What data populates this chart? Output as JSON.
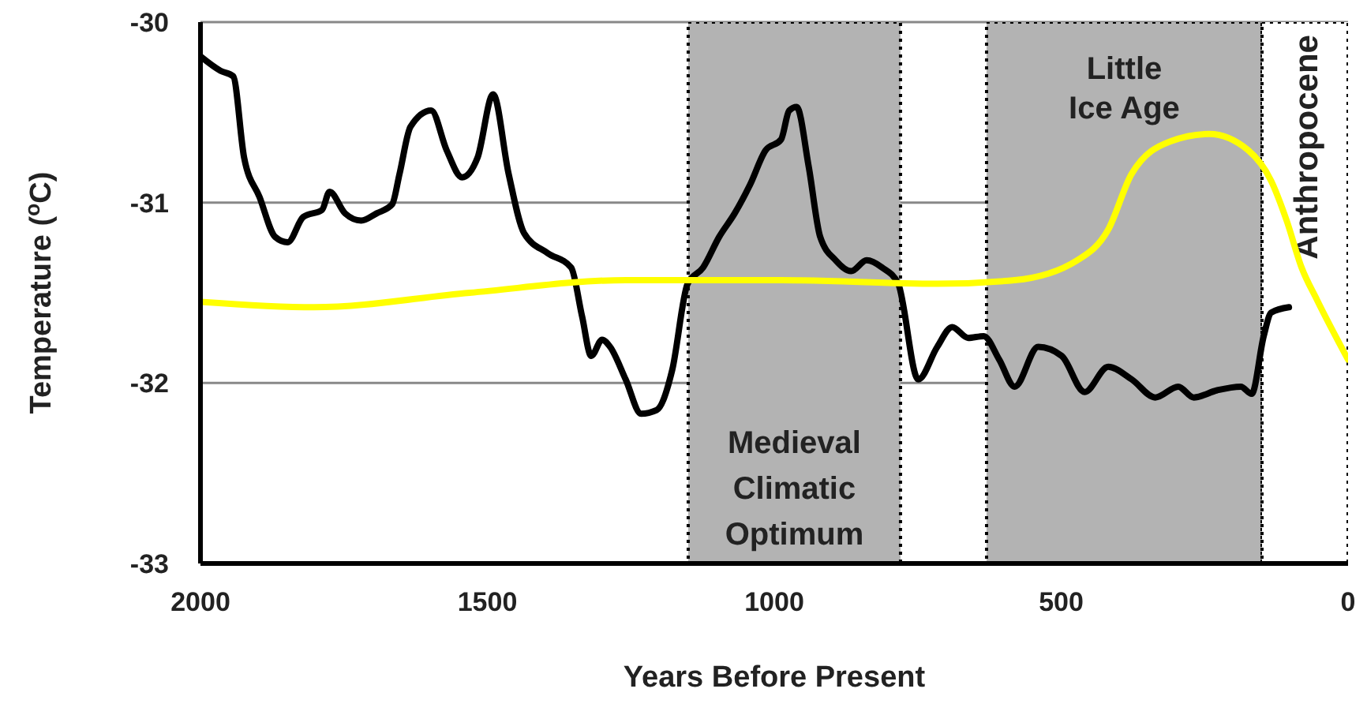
{
  "chart_data": {
    "type": "line",
    "xlabel": "Years Before Present",
    "ylabel": "Temperature ($^{o}$C)",
    "xlim": [
      2000,
      0
    ],
    "xticks": [
      2000,
      1500,
      1000,
      500,
      0
    ],
    "ylim": [
      -33,
      -30
    ],
    "yticks": [
      -33,
      -32,
      -31,
      -30
    ],
    "grid": "y",
    "legend": false,
    "marker": "none",
    "line_style": "solid",
    "bands": [
      {
        "axis": "x",
        "from": 1150,
        "to": 780,
        "label": "Medieval Climatic Optimum",
        "color": "#b3b3b3"
      },
      {
        "axis": "x",
        "from": 630,
        "to": 150,
        "label": "Little Ice Age",
        "color": "#b3b3b3"
      },
      {
        "axis": "x",
        "from": 150,
        "to": 0,
        "label": "Anthropocene",
        "color": "#ffffff"
      }
    ],
    "series": [
      {
        "color": "#000000",
        "x": [
          2000,
          1965,
          1943,
          1924,
          1897,
          1870,
          1848,
          1821,
          1788,
          1775,
          1748,
          1720,
          1693,
          1666,
          1653,
          1634,
          1598,
          1571,
          1544,
          1517,
          1490,
          1463,
          1436,
          1395,
          1354,
          1335,
          1319,
          1300,
          1286,
          1259,
          1232,
          1205,
          1178,
          1151,
          1124,
          1096,
          1069,
          1042,
          1015,
          988,
          974,
          961,
          940,
          920,
          893,
          866,
          839,
          812,
          784,
          749,
          716,
          690,
          662,
          635,
          608,
          581,
          540,
          499,
          459,
          418,
          377,
          336,
          296,
          269,
          228,
          187,
          168,
          147,
          134,
          103
        ],
        "values": [
          -30.19,
          -30.27,
          -30.3,
          -30.75,
          -30.97,
          -31.19,
          -31.22,
          -31.08,
          -31.04,
          -30.94,
          -31.06,
          -31.1,
          -31.06,
          -31.01,
          -30.84,
          -30.58,
          -30.49,
          -30.71,
          -30.86,
          -30.75,
          -30.4,
          -30.84,
          -31.17,
          -31.28,
          -31.36,
          -31.63,
          -31.85,
          -31.76,
          -31.8,
          -31.98,
          -32.17,
          -32.15,
          -31.93,
          -31.45,
          -31.36,
          -31.19,
          -31.06,
          -30.9,
          -30.71,
          -30.65,
          -30.49,
          -30.47,
          -30.8,
          -31.19,
          -31.32,
          -31.38,
          -31.32,
          -31.36,
          -31.45,
          -31.98,
          -31.8,
          -31.69,
          -31.75,
          -31.74,
          -31.87,
          -32.02,
          -31.8,
          -31.85,
          -32.05,
          -31.91,
          -31.98,
          -32.08,
          -32.02,
          -32.08,
          -32.04,
          -32.02,
          -32.06,
          -31.74,
          -31.61,
          -31.58
        ]
      },
      {
        "color": "#ffff00",
        "x": [
          2000,
          1802,
          1531,
          1259,
          988,
          716,
          581,
          472,
          418,
          377,
          309,
          242,
          174,
          134,
          107,
          81,
          54,
          0
        ],
        "values": [
          -31.55,
          -31.58,
          -31.5,
          -31.43,
          -31.43,
          -31.45,
          -31.43,
          -31.32,
          -31.15,
          -30.84,
          -30.66,
          -30.62,
          -30.71,
          -30.88,
          -31.1,
          -31.36,
          -31.54,
          -31.87
        ]
      }
    ]
  }
}
